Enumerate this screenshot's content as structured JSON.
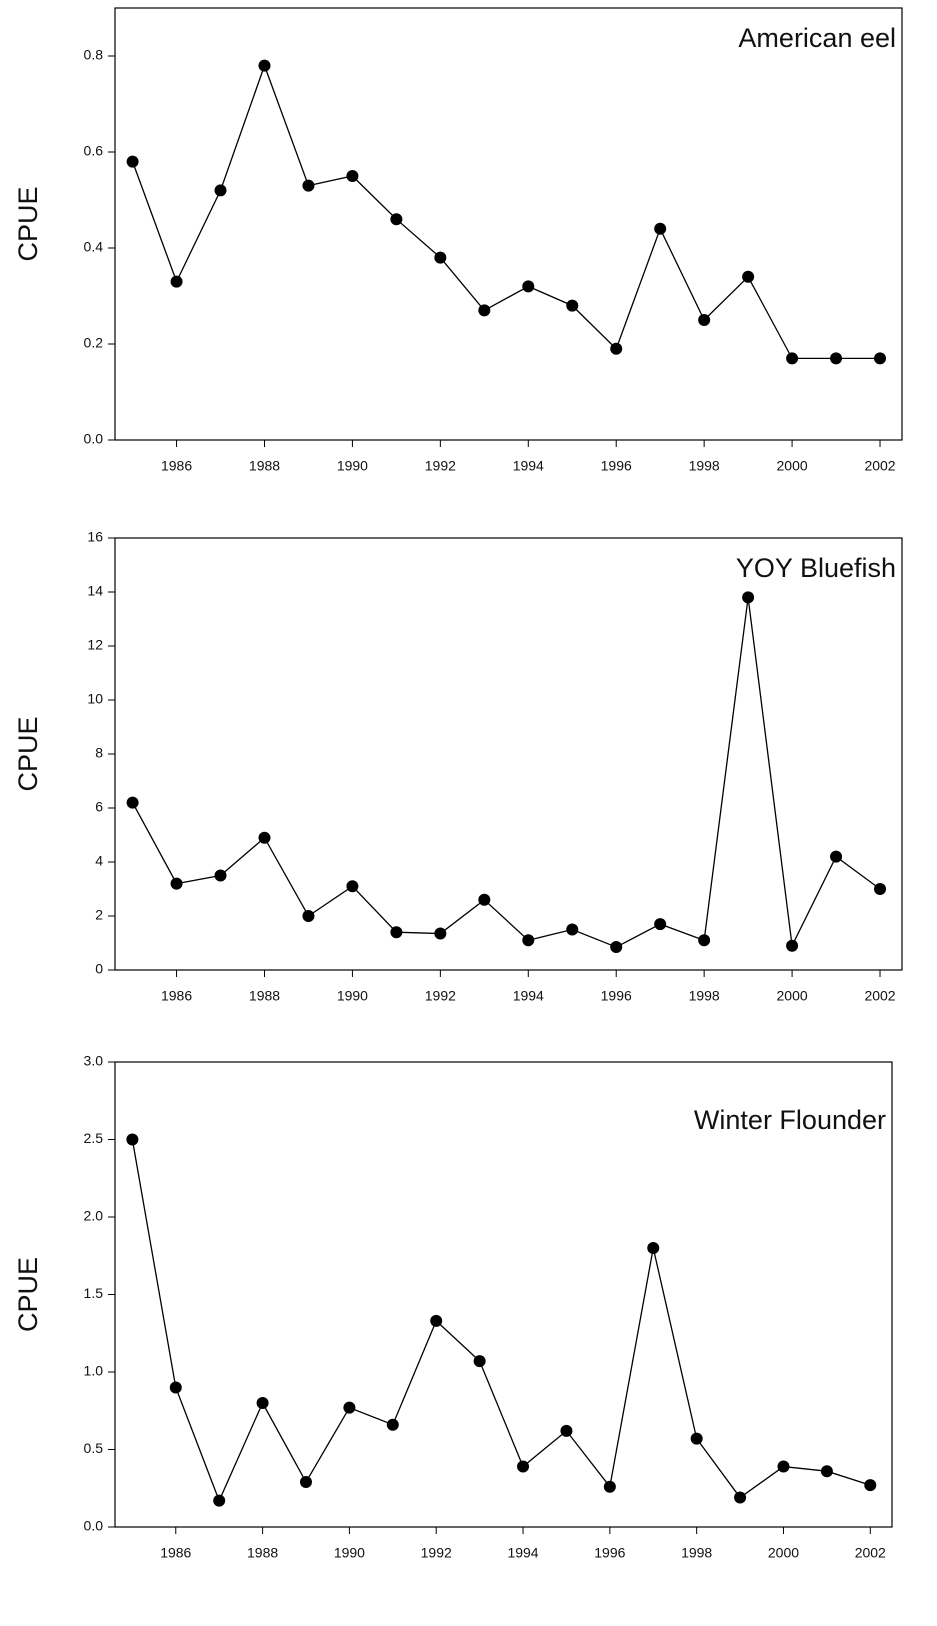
{
  "chart_data": [
    {
      "type": "line",
      "title": "American eel",
      "y_label": "CPUE",
      "x": [
        1985,
        1986,
        1987,
        1988,
        1989,
        1990,
        1991,
        1992,
        1993,
        1994,
        1995,
        1996,
        1997,
        1998,
        1999,
        2000,
        2001,
        2002
      ],
      "series": [
        {
          "color": "#000000",
          "values": [
            0.58,
            0.33,
            0.52,
            0.78,
            0.53,
            0.55,
            0.46,
            0.38,
            0.27,
            0.32,
            0.28,
            0.19,
            0.44,
            0.25,
            0.34,
            0.17,
            0.17,
            0.17
          ]
        }
      ],
      "xlim": [
        1984.6,
        2002.5
      ],
      "xticks": [
        1986,
        1988,
        1990,
        1992,
        1994,
        1996,
        1998,
        2000,
        2002
      ],
      "ylim": [
        0,
        0.9
      ],
      "yticks": [
        {
          "value": 0,
          "label": "0.0"
        },
        0.2,
        0.4,
        0.6,
        0.8
      ]
    },
    {
      "type": "line",
      "title": "YOY Bluefish",
      "y_label": "CPUE",
      "x": [
        1985,
        1986,
        1987,
        1988,
        1989,
        1990,
        1991,
        1992,
        1993,
        1994,
        1995,
        1996,
        1997,
        1998,
        1999,
        2000,
        2001,
        2002
      ],
      "series": [
        {
          "color": "#000000",
          "values": [
            6.2,
            3.2,
            3.5,
            4.9,
            2.0,
            3.1,
            1.4,
            1.35,
            2.6,
            1.1,
            1.5,
            0.85,
            1.7,
            1.1,
            13.8,
            0.9,
            4.2,
            3.0
          ]
        }
      ],
      "xlim": [
        1984.6,
        2002.5
      ],
      "xticks": [
        1986,
        1988,
        1990,
        1992,
        1994,
        1996,
        1998,
        2000,
        2002
      ],
      "ylim": [
        0,
        16
      ],
      "yticks": [
        0,
        2,
        4,
        6,
        8,
        10,
        12,
        14,
        16
      ]
    },
    {
      "type": "line",
      "title": "Winter Flounder",
      "y_label": "CPUE",
      "x": [
        1985,
        1986,
        1987,
        1988,
        1989,
        1990,
        1991,
        1992,
        1993,
        1994,
        1995,
        1996,
        1997,
        1998,
        1999,
        2000,
        2001,
        2002
      ],
      "series": [
        {
          "color": "#000000",
          "values": [
            2.5,
            0.9,
            0.17,
            0.8,
            0.29,
            0.77,
            0.66,
            1.33,
            1.07,
            0.39,
            0.62,
            0.26,
            1.8,
            0.57,
            0.19,
            0.39,
            0.36,
            0.27
          ]
        }
      ],
      "xlim": [
        1984.6,
        2002.5
      ],
      "xticks": [
        1986,
        1988,
        1990,
        1992,
        1994,
        1996,
        1998,
        2000,
        2002
      ],
      "ylim": [
        0,
        3
      ],
      "yticks": [
        {
          "value": 0,
          "label": "0.0"
        },
        0.5,
        {
          "value": 1,
          "label": "1.0"
        },
        1.5,
        {
          "value": 2,
          "label": "2.0"
        },
        2.5,
        {
          "value": 3,
          "label": "3.0"
        }
      ]
    }
  ]
}
